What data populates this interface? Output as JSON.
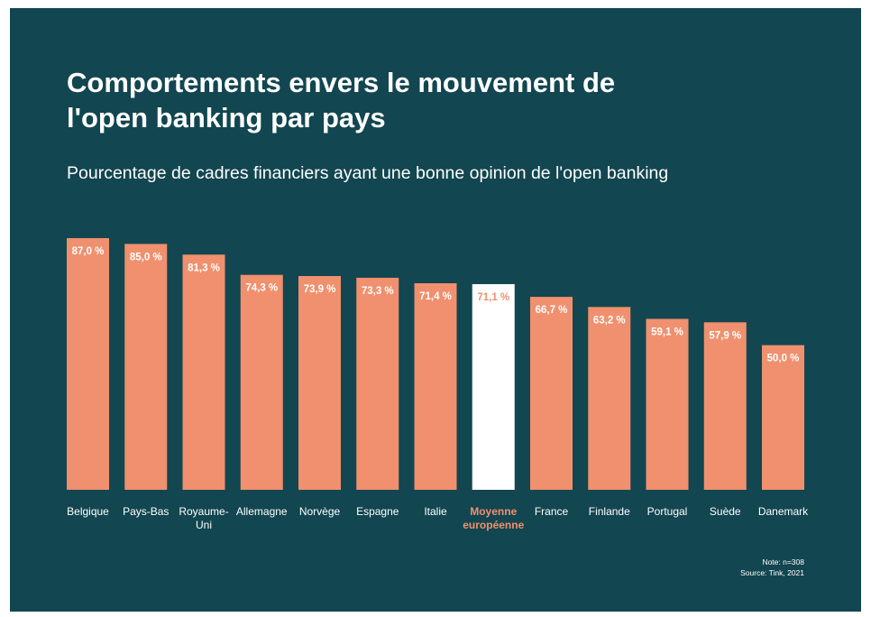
{
  "colors": {
    "background": "#124650",
    "bar": "#F0906E",
    "highlight_bar": "#FFFFFF",
    "highlight_text": "#F0906E",
    "text": "#FFFFFF"
  },
  "chart_data": {
    "type": "bar",
    "title": "Comportements envers le mouvement de l'open banking par pays",
    "subtitle": "Pourcentage de cadres financiers ayant une bonne opinion de l'open banking",
    "categories": [
      "Belgique",
      "Pays-Bas",
      "Royaume-Uni",
      "Allemagne",
      "Norvège",
      "Espagne",
      "Italie",
      "Moyenne européenne",
      "France",
      "Finlande",
      "Portugal",
      "Suède",
      "Danemark"
    ],
    "category_lines": [
      [
        "Belgique"
      ],
      [
        "Pays-Bas"
      ],
      [
        "Royaume-",
        "Uni"
      ],
      [
        "Allemagne"
      ],
      [
        "Norvège"
      ],
      [
        "Espagne"
      ],
      [
        "Italie"
      ],
      [
        "Moyenne",
        "européenne"
      ],
      [
        "France"
      ],
      [
        "Finlande"
      ],
      [
        "Portugal"
      ],
      [
        "Suède"
      ],
      [
        "Danemark"
      ]
    ],
    "values": [
      87.0,
      85.0,
      81.3,
      74.3,
      73.9,
      73.3,
      71.4,
      71.1,
      66.7,
      63.2,
      59.1,
      57.9,
      50.0
    ],
    "data_labels": [
      "87,0 %",
      "85,0 %",
      "81,3 %",
      "74,3 %",
      "73,9 %",
      "73,3 %",
      "71,4 %",
      "71,1 %",
      "66,7 %",
      "63,2 %",
      "59,1 %",
      "57,9 %",
      "50,0 %"
    ],
    "highlight_index": 7,
    "ylim": [
      0,
      100
    ],
    "xlabel": "",
    "ylabel": "",
    "grid": false
  },
  "note": {
    "line1": "Note:  n=308",
    "line2": "Source: Tink, 2021"
  }
}
